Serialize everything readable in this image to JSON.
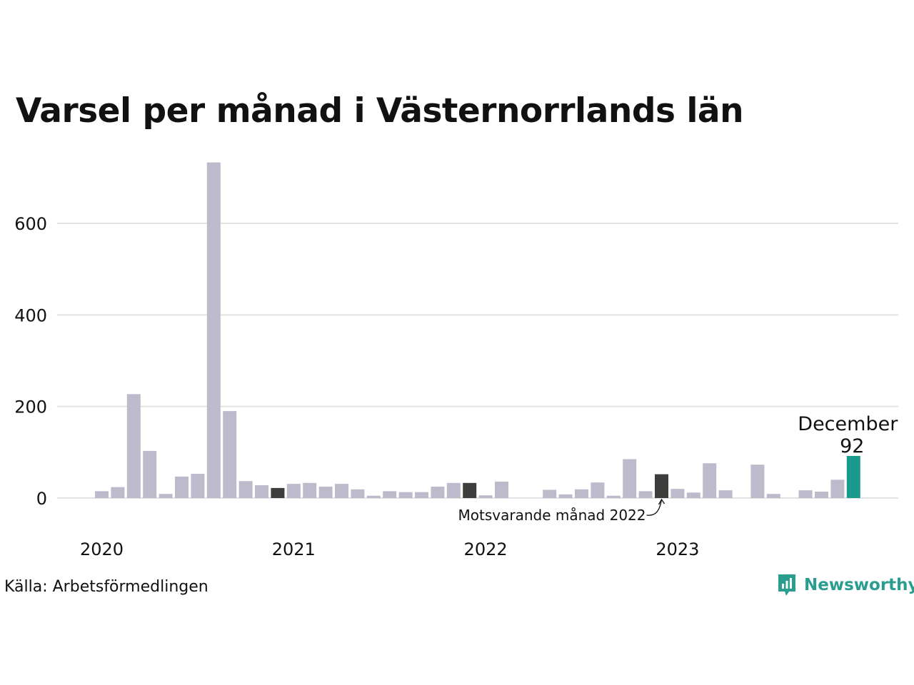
{
  "title": "Varsel per månad i Västernorrlands län",
  "source": "Källa: Arbetsförmedlingen",
  "brand": {
    "name": "Newsworthy",
    "icon": "newsworthy-logo-icon",
    "color": "#2a9d8f"
  },
  "colors": {
    "bar": "#bdbbcb",
    "comparison": "#3d3d3d",
    "highlight": "#1a9a8c",
    "grid": "#e3e3e3"
  },
  "chart_data": {
    "type": "bar",
    "title": "Varsel per månad i Västernorrlands län",
    "xlabel": "",
    "ylabel": "",
    "ylim": [
      0,
      760
    ],
    "yticks": [
      0,
      200,
      400,
      600
    ],
    "year_labels": [
      "2020",
      "2021",
      "2022",
      "2023"
    ],
    "grid": true,
    "categories": [
      "2020-01",
      "2020-02",
      "2020-03",
      "2020-04",
      "2020-05",
      "2020-06",
      "2020-07",
      "2020-08",
      "2020-09",
      "2020-10",
      "2020-11",
      "2020-12",
      "2021-01",
      "2021-02",
      "2021-03",
      "2021-04",
      "2021-05",
      "2021-06",
      "2021-07",
      "2021-08",
      "2021-09",
      "2021-10",
      "2021-11",
      "2021-12",
      "2022-01",
      "2022-02",
      "2022-03",
      "2022-04",
      "2022-05",
      "2022-06",
      "2022-07",
      "2022-08",
      "2022-09",
      "2022-10",
      "2022-11",
      "2022-12",
      "2023-01",
      "2023-02",
      "2023-03",
      "2023-04",
      "2023-05",
      "2023-06",
      "2023-07",
      "2023-08",
      "2023-09",
      "2023-10",
      "2023-11",
      "2023-12"
    ],
    "values": [
      15,
      24,
      227,
      103,
      9,
      47,
      53,
      733,
      190,
      37,
      28,
      22,
      31,
      33,
      25,
      31,
      19,
      5,
      15,
      13,
      13,
      25,
      33,
      33,
      6,
      36,
      0,
      0,
      18,
      8,
      19,
      34,
      5,
      85,
      15,
      52,
      20,
      12,
      76,
      17,
      0,
      73,
      9,
      0,
      17,
      14,
      40,
      92
    ],
    "highlight_index": 47,
    "comparison_indices": [
      11,
      23,
      35
    ],
    "annotations": {
      "latest_label": "December",
      "latest_value": "92",
      "comparison_label": "Motsvarande månad 2022"
    }
  }
}
